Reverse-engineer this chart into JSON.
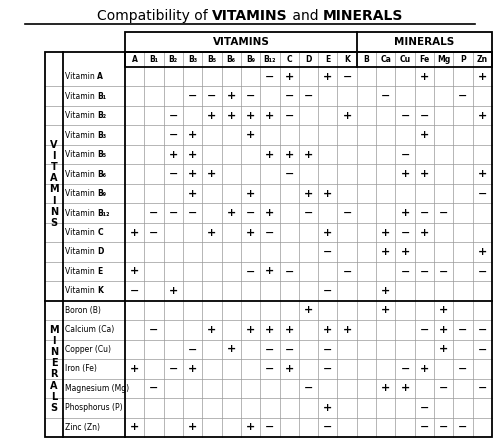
{
  "title_normal1": "Compatibility of ",
  "title_bold1": "VITAMINS",
  "title_normal2": " and ",
  "title_bold2": "MINERALS",
  "vitamins_header": "VITAMINS",
  "minerals_header": "MINERALS",
  "col_headers": [
    "A",
    "B₁",
    "B₂",
    "B₃",
    "B₅",
    "B₆",
    "B₉",
    "B₁₂",
    "C",
    "D",
    "E",
    "K",
    "B",
    "Ca",
    "Cu",
    "Fe",
    "Mg",
    "P",
    "Zn"
  ],
  "row_headers": [
    "Vitamin A",
    "Vitamin B₁",
    "Vitamin B₂",
    "Vitamin B₃",
    "Vitamin B₅",
    "Vitamin B₆",
    "Vitamin B₉",
    "Vitamin B₁₂",
    "Vitamin C",
    "Vitamin D",
    "Vitamin E",
    "Vitamin K",
    "Boron (B)",
    "Calcium (Ca)",
    "Copper (Cu)",
    "Iron (Fe)",
    "Magnesium (Mg)",
    "Phosphorus (P)",
    "Zinc (Zn)"
  ],
  "row_prefixes": [
    "Vitamin ",
    "Vitamin ",
    "Vitamin ",
    "Vitamin ",
    "Vitamin ",
    "Vitamin ",
    "Vitamin ",
    "Vitamin ",
    "Vitamin ",
    "Vitamin ",
    "Vitamin ",
    "Vitamin ",
    "",
    "",
    "",
    "",
    "",
    "",
    ""
  ],
  "row_bold_suffixes": [
    "A",
    "B₁",
    "B₂",
    "B₃",
    "B₅",
    "B₆",
    "B₉",
    "B₁₂",
    "C",
    "D",
    "E",
    "K",
    "Boron (B)",
    "Calcium (Ca)",
    "Copper (Cu)",
    "Iron (Fe)",
    "Magnesium (Mg)",
    "Phosphorus (P)",
    "Zinc (Zn)"
  ],
  "vitamin_rows": 12,
  "mineral_rows": 7,
  "vitamin_cols": 12,
  "mineral_cols": 7,
  "table_data": [
    [
      "",
      "",
      "",
      "",
      "",
      "",
      "",
      "−",
      "+",
      "",
      "+",
      "−",
      "",
      "",
      "",
      "+",
      "",
      "",
      "+"
    ],
    [
      "",
      "",
      "",
      "−",
      "−",
      "+",
      "−",
      "",
      "−",
      "−",
      "",
      "",
      "",
      "−",
      "",
      "",
      "",
      "−",
      ""
    ],
    [
      "",
      "",
      "−",
      "",
      "+",
      "+",
      "+",
      "+",
      "−",
      "",
      "",
      "+",
      "",
      "",
      "−",
      "−",
      "",
      "",
      "+"
    ],
    [
      "",
      "",
      "−",
      "+",
      "",
      "",
      "+",
      "",
      "",
      "",
      "",
      "",
      "",
      "",
      "",
      "+",
      "",
      "",
      ""
    ],
    [
      "",
      "",
      "+",
      "+",
      "",
      "",
      "",
      "+",
      "+",
      "+",
      "",
      "",
      "",
      "",
      "−",
      "",
      "",
      "",
      ""
    ],
    [
      "",
      "",
      "−",
      "+",
      "+",
      "",
      "",
      "",
      "−",
      "",
      "",
      "",
      "",
      "",
      "+",
      "+",
      "",
      "",
      "+"
    ],
    [
      "",
      "",
      "",
      "+",
      "",
      "",
      "+",
      "",
      "",
      "+",
      "+",
      "",
      "",
      "",
      "",
      "",
      "",
      "",
      "−"
    ],
    [
      "",
      "−",
      "−",
      "−",
      "",
      "+",
      "−",
      "+",
      "",
      "−",
      "",
      "−",
      "",
      "",
      "+",
      "−",
      "−",
      "",
      ""
    ],
    [
      "+",
      "−",
      "",
      "",
      "+",
      "",
      "+",
      "−",
      "",
      "",
      "+",
      "",
      "",
      "+",
      "−",
      "+",
      "",
      "",
      ""
    ],
    [
      "",
      "",
      "",
      "",
      "",
      "",
      "",
      "",
      "",
      "",
      "−",
      "",
      "",
      "+",
      "+",
      "",
      "",
      "",
      "+"
    ],
    [
      "+",
      "",
      "",
      "",
      "",
      "",
      "−",
      "+",
      "−",
      "",
      "",
      "−",
      "",
      "",
      "−",
      "−",
      "−",
      "",
      "−"
    ],
    [
      "−",
      "",
      "+",
      "",
      "",
      "",
      "",
      "",
      "",
      "",
      "−",
      "",
      "",
      "+",
      "",
      "",
      "",
      "",
      ""
    ],
    [
      "",
      "",
      "",
      "",
      "",
      "",
      "",
      "",
      "",
      "+",
      "",
      "",
      "",
      "+",
      "",
      "",
      "+",
      "",
      ""
    ],
    [
      "",
      "−",
      "",
      "",
      "+",
      "",
      "+",
      "+",
      "+",
      "",
      "+",
      "+",
      "",
      "",
      "",
      "−",
      "+",
      "−",
      "−"
    ],
    [
      "",
      "",
      "",
      "−",
      "",
      "+",
      "",
      "−",
      "−",
      "",
      "−",
      "",
      "",
      "",
      "",
      "",
      "+",
      "",
      "−"
    ],
    [
      "+",
      "",
      "−",
      "+",
      "",
      "",
      "",
      "−",
      "+",
      "",
      "−",
      "",
      "",
      "",
      "−",
      "+",
      "",
      "−",
      ""
    ],
    [
      "",
      "−",
      "",
      "",
      "",
      "",
      "",
      "",
      "",
      "−",
      "",
      "",
      "",
      "+",
      "+",
      "",
      "−",
      "",
      "−"
    ],
    [
      "",
      "",
      "",
      "",
      "",
      "",
      "",
      "",
      "",
      "",
      "+",
      "",
      "",
      "",
      "",
      "−",
      "",
      "",
      ""
    ],
    [
      "+",
      "",
      "",
      "+",
      "",
      "",
      "+",
      "−",
      "",
      "",
      "−",
      "",
      "",
      "",
      "",
      "−",
      "−",
      "−",
      ""
    ]
  ],
  "vitamins_side_label": "V\nI\nT\nA\nM\nI\nN\nS",
  "minerals_side_label": "M\nI\nN\nE\nR\nA\nL\nS",
  "bg_color": "#ffffff",
  "grid_color": "#999999",
  "border_color": "#000000",
  "title_fontsize": 10,
  "header_fontsize": 7.5,
  "col_header_fontsize": 5.5,
  "row_label_fontsize": 5.5,
  "data_fontsize": 8,
  "side_label_fontsize": 7
}
